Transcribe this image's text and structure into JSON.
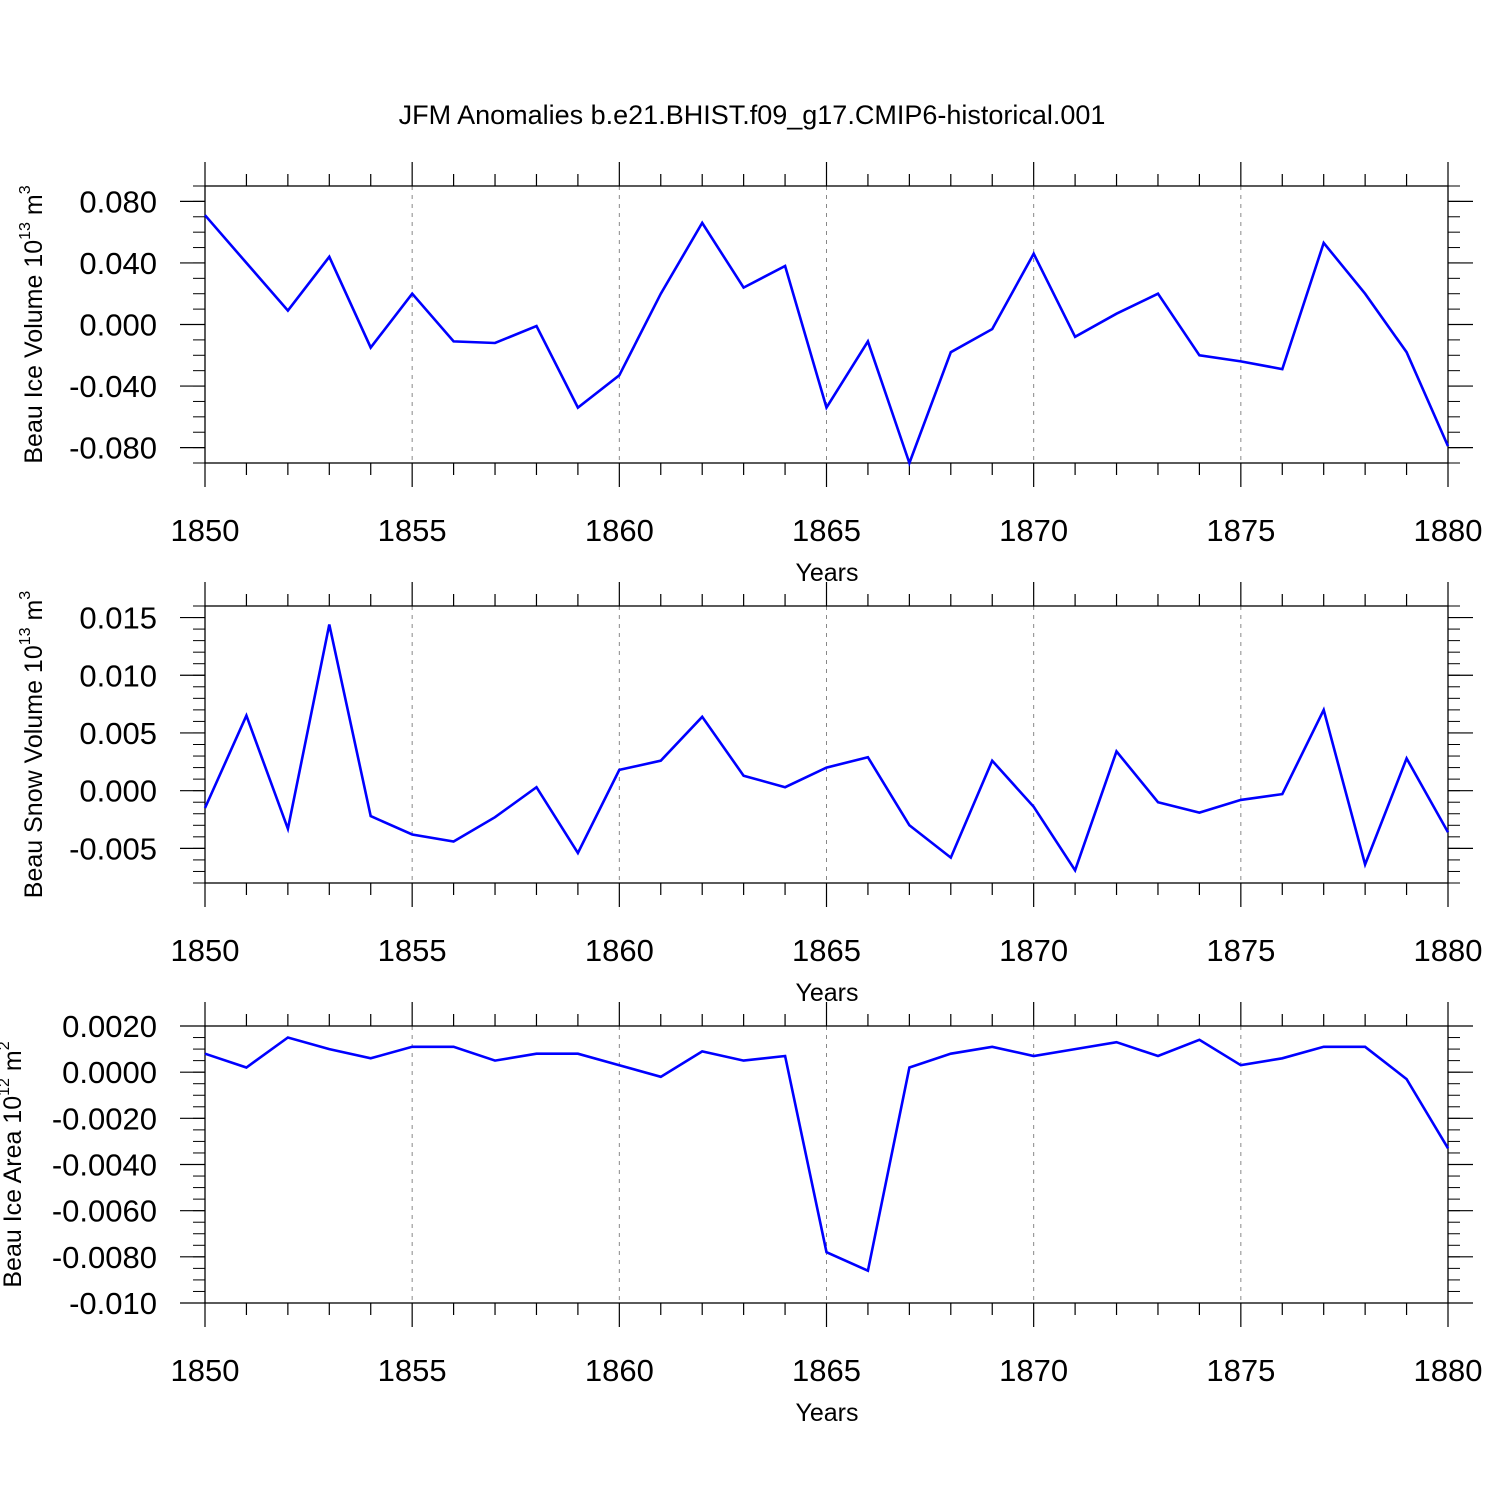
{
  "title": "JFM Anomalies b.e21.BHIST.f09_g17.CMIP6-historical.001",
  "colors": {
    "line": "#0000ff",
    "axis": "#000000",
    "grid": "#888888"
  },
  "chart_data": [
    {
      "type": "line",
      "ylabel": {
        "text": "Beau Ice Volume 10",
        "exp": "13",
        "unit": " m",
        "unit_exp": "3"
      },
      "xlabel": "Years",
      "xlim": [
        1850,
        1880
      ],
      "ylim": [
        -0.09,
        0.09
      ],
      "xticks": [
        "1850",
        "1855",
        "1860",
        "1865",
        "1870",
        "1875",
        "1880"
      ],
      "yticks": [
        "0.080",
        "0.040",
        "0.000",
        "-0.040",
        "-0.080"
      ],
      "ytick_values": [
        0.08,
        0.04,
        0.0,
        -0.04,
        -0.08
      ],
      "minor_step": 0.01,
      "x": [
        1850,
        1851,
        1852,
        1853,
        1854,
        1855,
        1856,
        1857,
        1858,
        1859,
        1860,
        1861,
        1862,
        1863,
        1864,
        1865,
        1866,
        1867,
        1868,
        1869,
        1870,
        1871,
        1872,
        1873,
        1874,
        1875,
        1876,
        1877,
        1878,
        1879,
        1880
      ],
      "values": [
        0.071,
        0.04,
        0.009,
        0.044,
        -0.015,
        0.02,
        -0.011,
        -0.012,
        -0.001,
        -0.054,
        -0.033,
        0.02,
        0.066,
        0.024,
        0.038,
        -0.054,
        -0.011,
        -0.09,
        -0.018,
        -0.003,
        0.046,
        -0.008,
        0.007,
        0.02,
        -0.02,
        -0.024,
        -0.029,
        0.053,
        0.02,
        -0.018,
        -0.079
      ]
    },
    {
      "type": "line",
      "ylabel": {
        "text": "Beau Snow Volume 10",
        "exp": "13",
        "unit": " m",
        "unit_exp": "3"
      },
      "xlabel": "Years",
      "xlim": [
        1850,
        1880
      ],
      "ylim": [
        -0.008,
        0.016
      ],
      "xticks": [
        "1850",
        "1855",
        "1860",
        "1865",
        "1870",
        "1875",
        "1880"
      ],
      "yticks": [
        "0.015",
        "0.010",
        "0.005",
        "0.000",
        "-0.005"
      ],
      "ytick_values": [
        0.015,
        0.01,
        0.005,
        0.0,
        -0.005
      ],
      "minor_step": 0.001,
      "x": [
        1850,
        1851,
        1852,
        1853,
        1854,
        1855,
        1856,
        1857,
        1858,
        1859,
        1860,
        1861,
        1862,
        1863,
        1864,
        1865,
        1866,
        1867,
        1868,
        1869,
        1870,
        1871,
        1872,
        1873,
        1874,
        1875,
        1876,
        1877,
        1878,
        1879,
        1880
      ],
      "values": [
        -0.0015,
        0.0065,
        -0.0033,
        0.0144,
        -0.0022,
        -0.0038,
        -0.0044,
        -0.0023,
        0.0003,
        -0.0054,
        0.0018,
        0.0026,
        0.0064,
        0.0013,
        0.0003,
        0.002,
        0.0029,
        -0.003,
        -0.0058,
        0.0026,
        -0.0014,
        -0.0069,
        0.0034,
        -0.001,
        -0.0019,
        -0.0008,
        -0.0003,
        0.007,
        -0.0064,
        0.0028,
        -0.0036
      ]
    },
    {
      "type": "line",
      "ylabel": {
        "text": "Beau Ice Area 10",
        "exp": "12",
        "unit": " m",
        "unit_exp": "2"
      },
      "xlabel": "Years",
      "xlim": [
        1850,
        1880
      ],
      "ylim": [
        -0.01,
        0.002
      ],
      "xticks": [
        "1850",
        "1855",
        "1860",
        "1865",
        "1870",
        "1875",
        "1880"
      ],
      "yticks": [
        "0.0020",
        "0.0000",
        "-0.0020",
        "-0.0040",
        "-0.0060",
        "-0.0080",
        "-0.010"
      ],
      "ytick_values": [
        0.002,
        0.0,
        -0.002,
        -0.004,
        -0.006,
        -0.008,
        -0.01
      ],
      "minor_step": 0.0005,
      "x": [
        1850,
        1851,
        1852,
        1853,
        1854,
        1855,
        1856,
        1857,
        1858,
        1859,
        1860,
        1861,
        1862,
        1863,
        1864,
        1865,
        1866,
        1867,
        1868,
        1869,
        1870,
        1871,
        1872,
        1873,
        1874,
        1875,
        1876,
        1877,
        1878,
        1879,
        1880
      ],
      "values": [
        0.0008,
        0.0002,
        0.0015,
        0.001,
        0.0006,
        0.0011,
        0.0011,
        0.0005,
        0.0008,
        0.0008,
        0.0003,
        -0.0002,
        0.0009,
        0.0005,
        0.0007,
        -0.0078,
        -0.0086,
        0.0002,
        0.0008,
        0.0011,
        0.0007,
        0.001,
        0.0013,
        0.0007,
        0.0014,
        0.0003,
        0.0006,
        0.0011,
        0.0011,
        -0.0003,
        -0.0033
      ]
    }
  ]
}
